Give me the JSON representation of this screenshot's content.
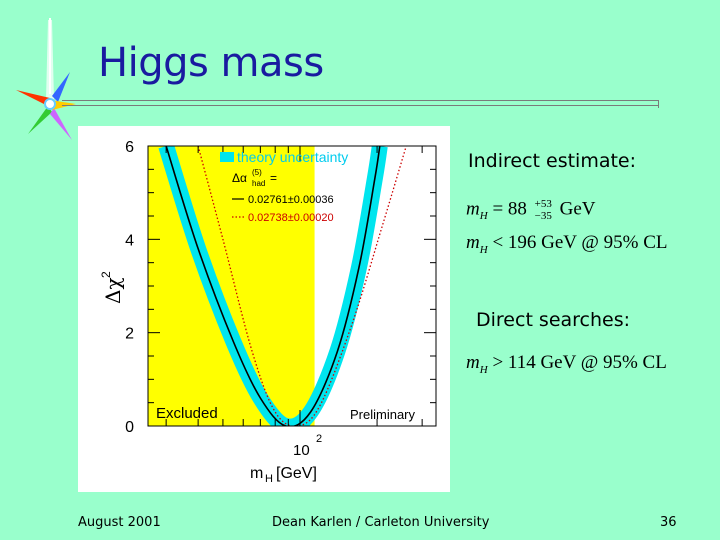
{
  "slide": {
    "title": "Higgs mass",
    "indirect_label": "Indirect estimate:",
    "indirect_lines": [
      {
        "symbol": "m",
        "subscript": "H",
        "relation": "= 88",
        "sup": "+53",
        "sub": "−35",
        "unit": "GeV"
      },
      {
        "symbol": "m",
        "subscript": "H",
        "relation": "< 196 GeV @ 95% CL"
      }
    ],
    "direct_label": "Direct searches:",
    "direct_line": {
      "symbol": "m",
      "subscript": "H",
      "relation": "> 114 GeV @ 95% CL"
    },
    "footer": {
      "date": "August 2001",
      "author": "Dean Karlen / Carleton University",
      "page": "36"
    }
  },
  "colors": {
    "background": "#99ffcc",
    "title": "#1a1aa0",
    "excluded_region": "#ffff00",
    "theory_band": "#00e5ee",
    "main_curve": "#000000",
    "alt_curve": "#cc0000"
  },
  "chart_data": {
    "type": "line",
    "xlabel_main": "m",
    "xlabel_sub": "H",
    "xlabel_unit": "[GeV]",
    "x_tick_label": "10",
    "x_tick_exp": "2",
    "ylabel": "Δχ",
    "ylabel_exp": "2",
    "ylim": [
      0,
      6
    ],
    "y_ticks": [
      "0",
      "2",
      "4",
      "6"
    ],
    "x_scale": "log",
    "excluded_upper_gev": 114,
    "legend": {
      "band_label": "theory uncertainty",
      "alpha_symbol": "Δα",
      "alpha_sup": "(5)",
      "alpha_sub": "had",
      "alpha_eq": "=",
      "series1_label": "0.02761±0.00036",
      "series2_label": "0.02738±0.00020"
    },
    "excluded_label": "Excluded",
    "preliminary_label": "Preliminary",
    "series": [
      {
        "style": "solid",
        "label": "0.02761±0.00036",
        "points": [
          [
            30,
            6.0
          ],
          [
            40,
            3.8
          ],
          [
            55,
            1.8
          ],
          [
            70,
            0.6
          ],
          [
            88,
            0.0
          ],
          [
            110,
            0.3
          ],
          [
            140,
            1.6
          ],
          [
            170,
            3.4
          ],
          [
            196,
            5.3
          ],
          [
            205,
            6.0
          ]
        ]
      },
      {
        "style": "dotted",
        "label": "0.02738±0.00020",
        "points": [
          [
            40,
            6.0
          ],
          [
            50,
            4.0
          ],
          [
            65,
            1.6
          ],
          [
            80,
            0.3
          ],
          [
            98,
            0.0
          ],
          [
            120,
            0.45
          ],
          [
            160,
            2.2
          ],
          [
            210,
            4.3
          ],
          [
            260,
            6.0
          ]
        ]
      }
    ]
  }
}
